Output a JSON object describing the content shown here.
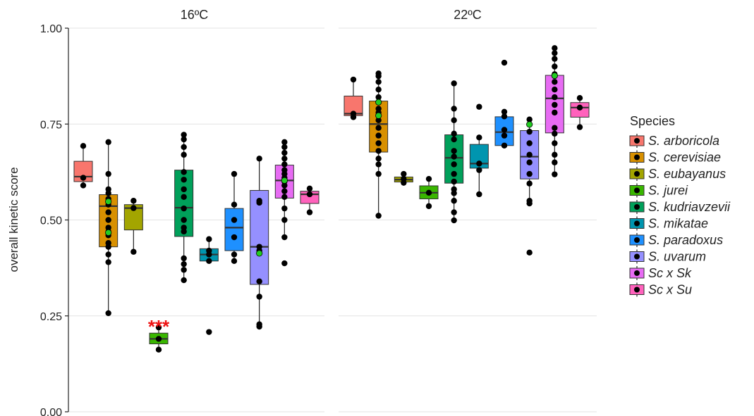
{
  "chart_data": {
    "type": "boxplot",
    "ylabel": "overall kinetic score",
    "ylim": [
      0,
      1
    ],
    "yticks": [
      0,
      0.25,
      0.5,
      0.75,
      1.0
    ],
    "ytick_labels": [
      "0.00",
      "0.25",
      "0.50",
      "0.75",
      "1.00"
    ],
    "grid": true,
    "legend": {
      "title": "Species",
      "position": "right"
    },
    "species": [
      {
        "name": "S. arboricola",
        "color": "#F8766D"
      },
      {
        "name": "S. cerevisiae",
        "color": "#D89000"
      },
      {
        "name": "S. eubayanus",
        "color": "#A3A500"
      },
      {
        "name": "S. jurei",
        "color": "#39B600"
      },
      {
        "name": "S. kudriavzevii",
        "color": "#00A05A"
      },
      {
        "name": "S. mikatae",
        "color": "#0095AF"
      },
      {
        "name": "S. paradoxus",
        "color": "#1E90FF"
      },
      {
        "name": "S. uvarum",
        "color": "#9590FF"
      },
      {
        "name": "Sc x Sk",
        "color": "#E76BF3"
      },
      {
        "name": "Sc x Su",
        "color": "#FF62BC"
      }
    ],
    "facets": [
      {
        "title": "16ºC",
        "boxes": [
          {
            "species": "S. arboricola",
            "q1": 0.6,
            "median": 0.613,
            "q3": 0.653,
            "whisker_low": 0.59,
            "whisker_high": 0.693,
            "points": [
              0.59,
              0.61,
              0.693
            ],
            "highlight": []
          },
          {
            "species": "S. cerevisiae",
            "q1": 0.43,
            "median": 0.536,
            "q3": 0.566,
            "whisker_low": 0.257,
            "whisker_high": 0.703,
            "points": [
              0.257,
              0.39,
              0.41,
              0.43,
              0.44,
              0.46,
              0.47,
              0.48,
              0.5,
              0.52,
              0.54,
              0.555,
              0.57,
              0.58,
              0.62,
              0.703
            ],
            "highlight": [
              0.548,
              0.467
            ]
          },
          {
            "species": "S. eubayanus",
            "q1": 0.474,
            "median": 0.531,
            "q3": 0.54,
            "whisker_low": 0.417,
            "whisker_high": 0.55,
            "points": [
              0.417,
              0.531,
              0.55
            ],
            "highlight": []
          },
          {
            "species": "S. jurei",
            "q1": 0.177,
            "median": 0.19,
            "q3": 0.205,
            "whisker_low": 0.162,
            "whisker_high": 0.22,
            "points": [
              0.162,
              0.19,
              0.22
            ],
            "highlight": [],
            "annotation": "***"
          },
          {
            "species": "S. kudriavzevii",
            "q1": 0.457,
            "median": 0.532,
            "q3": 0.63,
            "whisker_low": 0.343,
            "whisker_high": 0.722,
            "points": [
              0.343,
              0.37,
              0.385,
              0.4,
              0.47,
              0.48,
              0.5,
              0.53,
              0.56,
              0.58,
              0.605,
              0.625,
              0.67,
              0.69,
              0.71,
              0.722
            ],
            "highlight": []
          },
          {
            "species": "S. mikatae",
            "q1": 0.393,
            "median": 0.41,
            "q3": 0.425,
            "whisker_low": 0.393,
            "whisker_high": 0.45,
            "points": [
              0.208,
              0.393,
              0.41,
              0.42,
              0.45
            ],
            "highlight": []
          },
          {
            "species": "S. paradoxus",
            "q1": 0.42,
            "median": 0.48,
            "q3": 0.53,
            "whisker_low": 0.393,
            "whisker_high": 0.62,
            "points": [
              0.393,
              0.41,
              0.455,
              0.5,
              0.54,
              0.62
            ],
            "highlight": []
          },
          {
            "species": "S. uvarum",
            "q1": 0.332,
            "median": 0.43,
            "q3": 0.577,
            "whisker_low": 0.222,
            "whisker_high": 0.662,
            "points": [
              0.222,
              0.228,
              0.3,
              0.34,
              0.42,
              0.43,
              0.545,
              0.55,
              0.66
            ],
            "highlight": [
              0.413
            ]
          },
          {
            "species": "Sc x Sk",
            "q1": 0.557,
            "median": 0.603,
            "q3": 0.643,
            "whisker_low": 0.455,
            "whisker_high": 0.703,
            "points": [
              0.387,
              0.455,
              0.5,
              0.53,
              0.56,
              0.575,
              0.59,
              0.6,
              0.61,
              0.62,
              0.63,
              0.645,
              0.66,
              0.675,
              0.69,
              0.703
            ],
            "highlight": [
              0.603
            ]
          },
          {
            "species": "Sc x Su",
            "q1": 0.543,
            "median": 0.567,
            "q3": 0.575,
            "whisker_low": 0.52,
            "whisker_high": 0.582,
            "points": [
              0.52,
              0.567,
              0.582
            ],
            "highlight": []
          }
        ]
      },
      {
        "title": "22ºC",
        "boxes": [
          {
            "species": "S. arboricola",
            "q1": 0.772,
            "median": 0.777,
            "q3": 0.823,
            "whisker_low": 0.768,
            "whisker_high": 0.866,
            "points": [
              0.768,
              0.777,
              0.866
            ],
            "highlight": []
          },
          {
            "species": "S. cerevisiae",
            "q1": 0.677,
            "median": 0.75,
            "q3": 0.81,
            "whisker_low": 0.511,
            "whisker_high": 0.882,
            "points": [
              0.511,
              0.62,
              0.645,
              0.66,
              0.68,
              0.7,
              0.72,
              0.74,
              0.76,
              0.78,
              0.79,
              0.82,
              0.84,
              0.86,
              0.875,
              0.882
            ],
            "highlight": [
              0.807,
              0.772
            ]
          },
          {
            "species": "S. eubayanus",
            "q1": 0.599,
            "median": 0.605,
            "q3": 0.612,
            "whisker_low": 0.597,
            "whisker_high": 0.62,
            "points": [
              0.597,
              0.607,
              0.62
            ],
            "highlight": []
          },
          {
            "species": "S. jurei",
            "q1": 0.555,
            "median": 0.571,
            "q3": 0.589,
            "whisker_low": 0.536,
            "whisker_high": 0.607,
            "points": [
              0.536,
              0.571,
              0.607
            ],
            "highlight": []
          },
          {
            "species": "S. kudriavzevii",
            "q1": 0.596,
            "median": 0.662,
            "q3": 0.722,
            "whisker_low": 0.499,
            "whisker_high": 0.856,
            "points": [
              0.499,
              0.52,
              0.55,
              0.57,
              0.58,
              0.6,
              0.62,
              0.645,
              0.665,
              0.68,
              0.71,
              0.725,
              0.76,
              0.79,
              0.856
            ],
            "highlight": []
          },
          {
            "species": "S. mikatae",
            "q1": 0.635,
            "median": 0.647,
            "q3": 0.697,
            "whisker_low": 0.567,
            "whisker_high": 0.715,
            "points": [
              0.567,
              0.63,
              0.647,
              0.715,
              0.795
            ],
            "highlight": []
          },
          {
            "species": "S. paradoxus",
            "q1": 0.694,
            "median": 0.729,
            "q3": 0.769,
            "whisker_low": 0.694,
            "whisker_high": 0.782,
            "points": [
              0.694,
              0.72,
              0.735,
              0.77,
              0.782,
              0.91
            ],
            "highlight": []
          },
          {
            "species": "S. uvarum",
            "q1": 0.607,
            "median": 0.665,
            "q3": 0.733,
            "whisker_low": 0.543,
            "whisker_high": 0.762,
            "points": [
              0.415,
              0.543,
              0.55,
              0.595,
              0.62,
              0.65,
              0.67,
              0.7,
              0.73,
              0.762
            ],
            "highlight": [
              0.749
            ]
          },
          {
            "species": "Sc x Sk",
            "q1": 0.727,
            "median": 0.817,
            "q3": 0.877,
            "whisker_low": 0.619,
            "whisker_high": 0.948,
            "points": [
              0.619,
              0.65,
              0.67,
              0.7,
              0.725,
              0.74,
              0.78,
              0.8,
              0.82,
              0.84,
              0.86,
              0.88,
              0.9,
              0.92,
              0.935,
              0.948
            ],
            "highlight": [
              0.876
            ]
          },
          {
            "species": "Sc x Su",
            "q1": 0.768,
            "median": 0.793,
            "q3": 0.806,
            "whisker_low": 0.742,
            "whisker_high": 0.818,
            "points": [
              0.742,
              0.793,
              0.818
            ],
            "highlight": []
          }
        ]
      }
    ]
  }
}
